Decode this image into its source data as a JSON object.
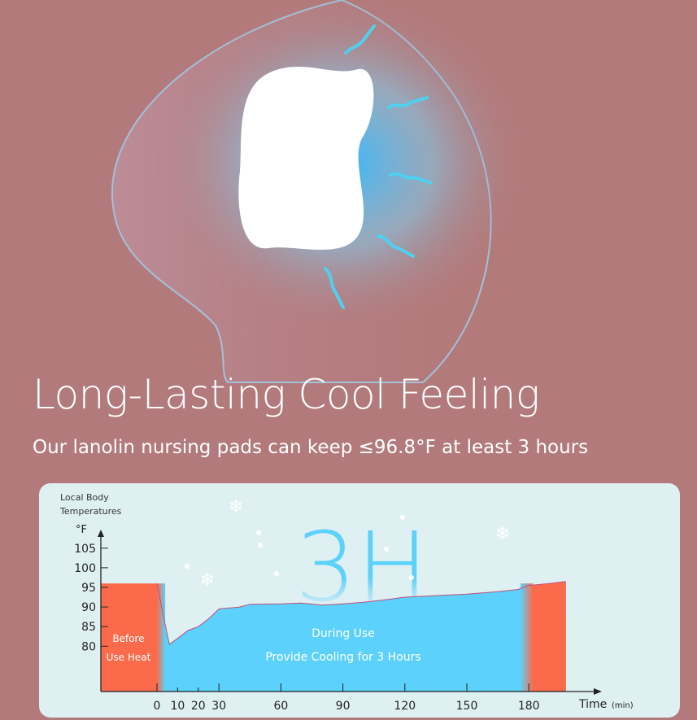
{
  "headline": "Long-Lasting Cool Feeling",
  "subheadline": "Our lanolin nursing pads can keep ≤96.8°F at least 3 hours",
  "colors": {
    "background": "#b37a7b",
    "panel": "#dff0f3",
    "cool": "#5bd1fb",
    "heat": "#fb6b4b",
    "line": "#c0507a"
  },
  "illustration": {
    "icons": [
      "breast-outline",
      "nursing-pad",
      "cool-wave-arrow-icon"
    ]
  },
  "chart_data": {
    "type": "area",
    "ylabel": "Local Body Temperatures",
    "yunit": "°F",
    "xlabel": "Time",
    "xunit": "(min)",
    "yticks": [
      105,
      100,
      95,
      90,
      85,
      80
    ],
    "xticks": [
      0,
      10,
      20,
      30,
      60,
      90,
      120,
      150,
      180
    ],
    "big_label": "3H",
    "before_label": [
      "Before",
      "Use Heat"
    ],
    "during_label": [
      "During Use",
      "Provide Cooling for 3 Hours"
    ],
    "before_value": 96,
    "series": [
      {
        "x": [
          0,
          3,
          6,
          10,
          15,
          20,
          25,
          30,
          40,
          45,
          60,
          70,
          80,
          90,
          100,
          110,
          120,
          135,
          150,
          165,
          175,
          180,
          190,
          198
        ],
        "y": [
          96,
          88,
          80.5,
          82,
          84,
          85,
          87,
          89.5,
          90,
          90.7,
          90.8,
          91,
          90.5,
          90.8,
          91.2,
          91.8,
          92.5,
          92.9,
          93.3,
          93.9,
          94.5,
          95.5,
          96,
          96.5
        ]
      }
    ]
  }
}
